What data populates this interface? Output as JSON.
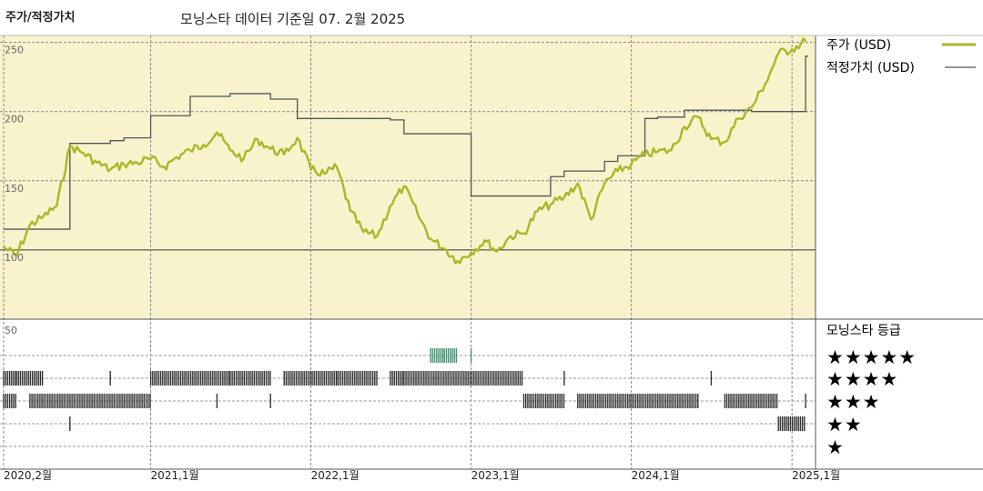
{
  "header": {
    "title": "주가/적정가치",
    "subtitle": "모닝스타 데이터 기준일 07. 2월 2025"
  },
  "legend": {
    "price_label": "주가 (USD)",
    "fair_label": "적정가치 (USD)",
    "rating_title": "모닝스타 등급",
    "stars": [
      "★★★★★",
      "★★★★",
      "★★★",
      "★★",
      "★"
    ]
  },
  "colors": {
    "price": "#a8b82a",
    "fair": "#555555",
    "upper_bg": "#f8f3cc",
    "five_star": "#4f8c72",
    "rating_bar": "#333333"
  },
  "chart_data": [
    {
      "type": "line",
      "y_ticks": [
        "250",
        "200",
        "150",
        "100"
      ],
      "ylim": [
        50,
        255
      ],
      "x_tick_labels": [
        "2020,2월",
        "2021,1월",
        "2022,1월",
        "2023,1월",
        "2024,1월",
        "2025,1월"
      ],
      "x_tick_dates": [
        "2020-02",
        "2021-01",
        "2022-01",
        "2023-01",
        "2024-01",
        "2025-01"
      ],
      "series": [
        {
          "name": "주가 (USD)",
          "points": [
            [
              "2020-02",
              102
            ],
            [
              "2020-03",
              96
            ],
            [
              "2020-04",
              118
            ],
            [
              "2020-05",
              124
            ],
            [
              "2020-06",
              132
            ],
            [
              "2020-07",
              175
            ],
            [
              "2020-08",
              170
            ],
            [
              "2020-09",
              163
            ],
            [
              "2020-10",
              158
            ],
            [
              "2020-11",
              162
            ],
            [
              "2020-12",
              163
            ],
            [
              "2021-01",
              166
            ],
            [
              "2021-02",
              160
            ],
            [
              "2021-03",
              167
            ],
            [
              "2021-04",
              172
            ],
            [
              "2021-05",
              176
            ],
            [
              "2021-06",
              185
            ],
            [
              "2021-07",
              172
            ],
            [
              "2021-08",
              166
            ],
            [
              "2021-09",
              180
            ],
            [
              "2021-10",
              173
            ],
            [
              "2021-11",
              169
            ],
            [
              "2021-12",
              181
            ],
            [
              "2022-01",
              158
            ],
            [
              "2022-02",
              155
            ],
            [
              "2022-03",
              160
            ],
            [
              "2022-04",
              128
            ],
            [
              "2022-05",
              113
            ],
            [
              "2022-06",
              110
            ],
            [
              "2022-07",
              132
            ],
            [
              "2022-08",
              146
            ],
            [
              "2022-09",
              126
            ],
            [
              "2022-10",
              108
            ],
            [
              "2022-11",
              101
            ],
            [
              "2022-12",
              92
            ],
            [
              "2023-01",
              98
            ],
            [
              "2023-02",
              107
            ],
            [
              "2023-03",
              99
            ],
            [
              "2023-04",
              110
            ],
            [
              "2023-05",
              112
            ],
            [
              "2023-06",
              128
            ],
            [
              "2023-07",
              133
            ],
            [
              "2023-08",
              138
            ],
            [
              "2023-09",
              148
            ],
            [
              "2023-10",
              122
            ],
            [
              "2023-11",
              148
            ],
            [
              "2023-12",
              157
            ],
            [
              "2024-01",
              162
            ],
            [
              "2024-02",
              169
            ],
            [
              "2024-03",
              171
            ],
            [
              "2024-04",
              172
            ],
            [
              "2024-05",
              189
            ],
            [
              "2024-06",
              196
            ],
            [
              "2024-07",
              180
            ],
            [
              "2024-08",
              178
            ],
            [
              "2024-09",
              195
            ],
            [
              "2024-10",
              203
            ],
            [
              "2024-11",
              220
            ],
            [
              "2024-12",
              242
            ],
            [
              "2025-01",
              245
            ],
            [
              "2025-02",
              251
            ]
          ]
        },
        {
          "name": "적정가치 (USD)",
          "steps": [
            [
              "2020-02",
              115
            ],
            [
              "2020-07",
              177
            ],
            [
              "2020-10",
              179
            ],
            [
              "2020-11",
              181
            ],
            [
              "2021-01",
              197
            ],
            [
              "2021-04",
              211
            ],
            [
              "2021-07",
              213
            ],
            [
              "2021-10",
              209
            ],
            [
              "2021-12",
              195
            ],
            [
              "2022-07",
              194
            ],
            [
              "2022-08",
              184
            ],
            [
              "2023-01",
              139
            ],
            [
              "2023-07",
              153
            ],
            [
              "2023-08",
              157
            ],
            [
              "2023-11",
              164
            ],
            [
              "2023-12",
              168
            ],
            [
              "2024-02",
              195
            ],
            [
              "2024-03",
              196
            ],
            [
              "2024-05",
              201
            ],
            [
              "2024-10",
              200
            ],
            [
              "2025-02",
              240
            ]
          ]
        }
      ]
    },
    {
      "type": "rating-timeline",
      "y_label": "50",
      "levels": [
        5,
        4,
        3,
        2,
        1
      ],
      "segments": [
        {
          "rating": 5,
          "from": "2022-10",
          "to": "2022-11"
        },
        {
          "rating": 5,
          "from": "2022-11",
          "to": "2022-12"
        },
        {
          "rating": 5,
          "from": "2023-01",
          "to": "2023-01"
        },
        {
          "rating": 4,
          "from": "2020-02",
          "to": "2020-03"
        },
        {
          "rating": 4,
          "from": "2020-03",
          "to": "2020-05"
        },
        {
          "rating": 4,
          "from": "2020-10",
          "to": "2020-10"
        },
        {
          "rating": 4,
          "from": "2021-01",
          "to": "2021-07"
        },
        {
          "rating": 4,
          "from": "2021-07",
          "to": "2021-10"
        },
        {
          "rating": 4,
          "from": "2021-11",
          "to": "2022-03"
        },
        {
          "rating": 4,
          "from": "2022-03",
          "to": "2022-06"
        },
        {
          "rating": 4,
          "from": "2022-07",
          "to": "2022-08"
        },
        {
          "rating": 4,
          "from": "2022-08",
          "to": "2023-05"
        },
        {
          "rating": 4,
          "from": "2023-08",
          "to": "2023-08"
        },
        {
          "rating": 4,
          "from": "2024-07",
          "to": "2024-07"
        },
        {
          "rating": 3,
          "from": "2020-02",
          "to": "2020-03"
        },
        {
          "rating": 3,
          "from": "2020-04",
          "to": "2021-01"
        },
        {
          "rating": 3,
          "from": "2021-06",
          "to": "2021-06"
        },
        {
          "rating": 3,
          "from": "2021-10",
          "to": "2021-10"
        },
        {
          "rating": 3,
          "from": "2023-05",
          "to": "2023-08"
        },
        {
          "rating": 3,
          "from": "2023-09",
          "to": "2024-06"
        },
        {
          "rating": 3,
          "from": "2024-08",
          "to": "2024-12"
        },
        {
          "rating": 3,
          "from": "2025-02",
          "to": "2025-02"
        },
        {
          "rating": 2,
          "from": "2020-07",
          "to": "2020-07"
        },
        {
          "rating": 2,
          "from": "2024-12",
          "to": "2025-02"
        }
      ]
    }
  ]
}
